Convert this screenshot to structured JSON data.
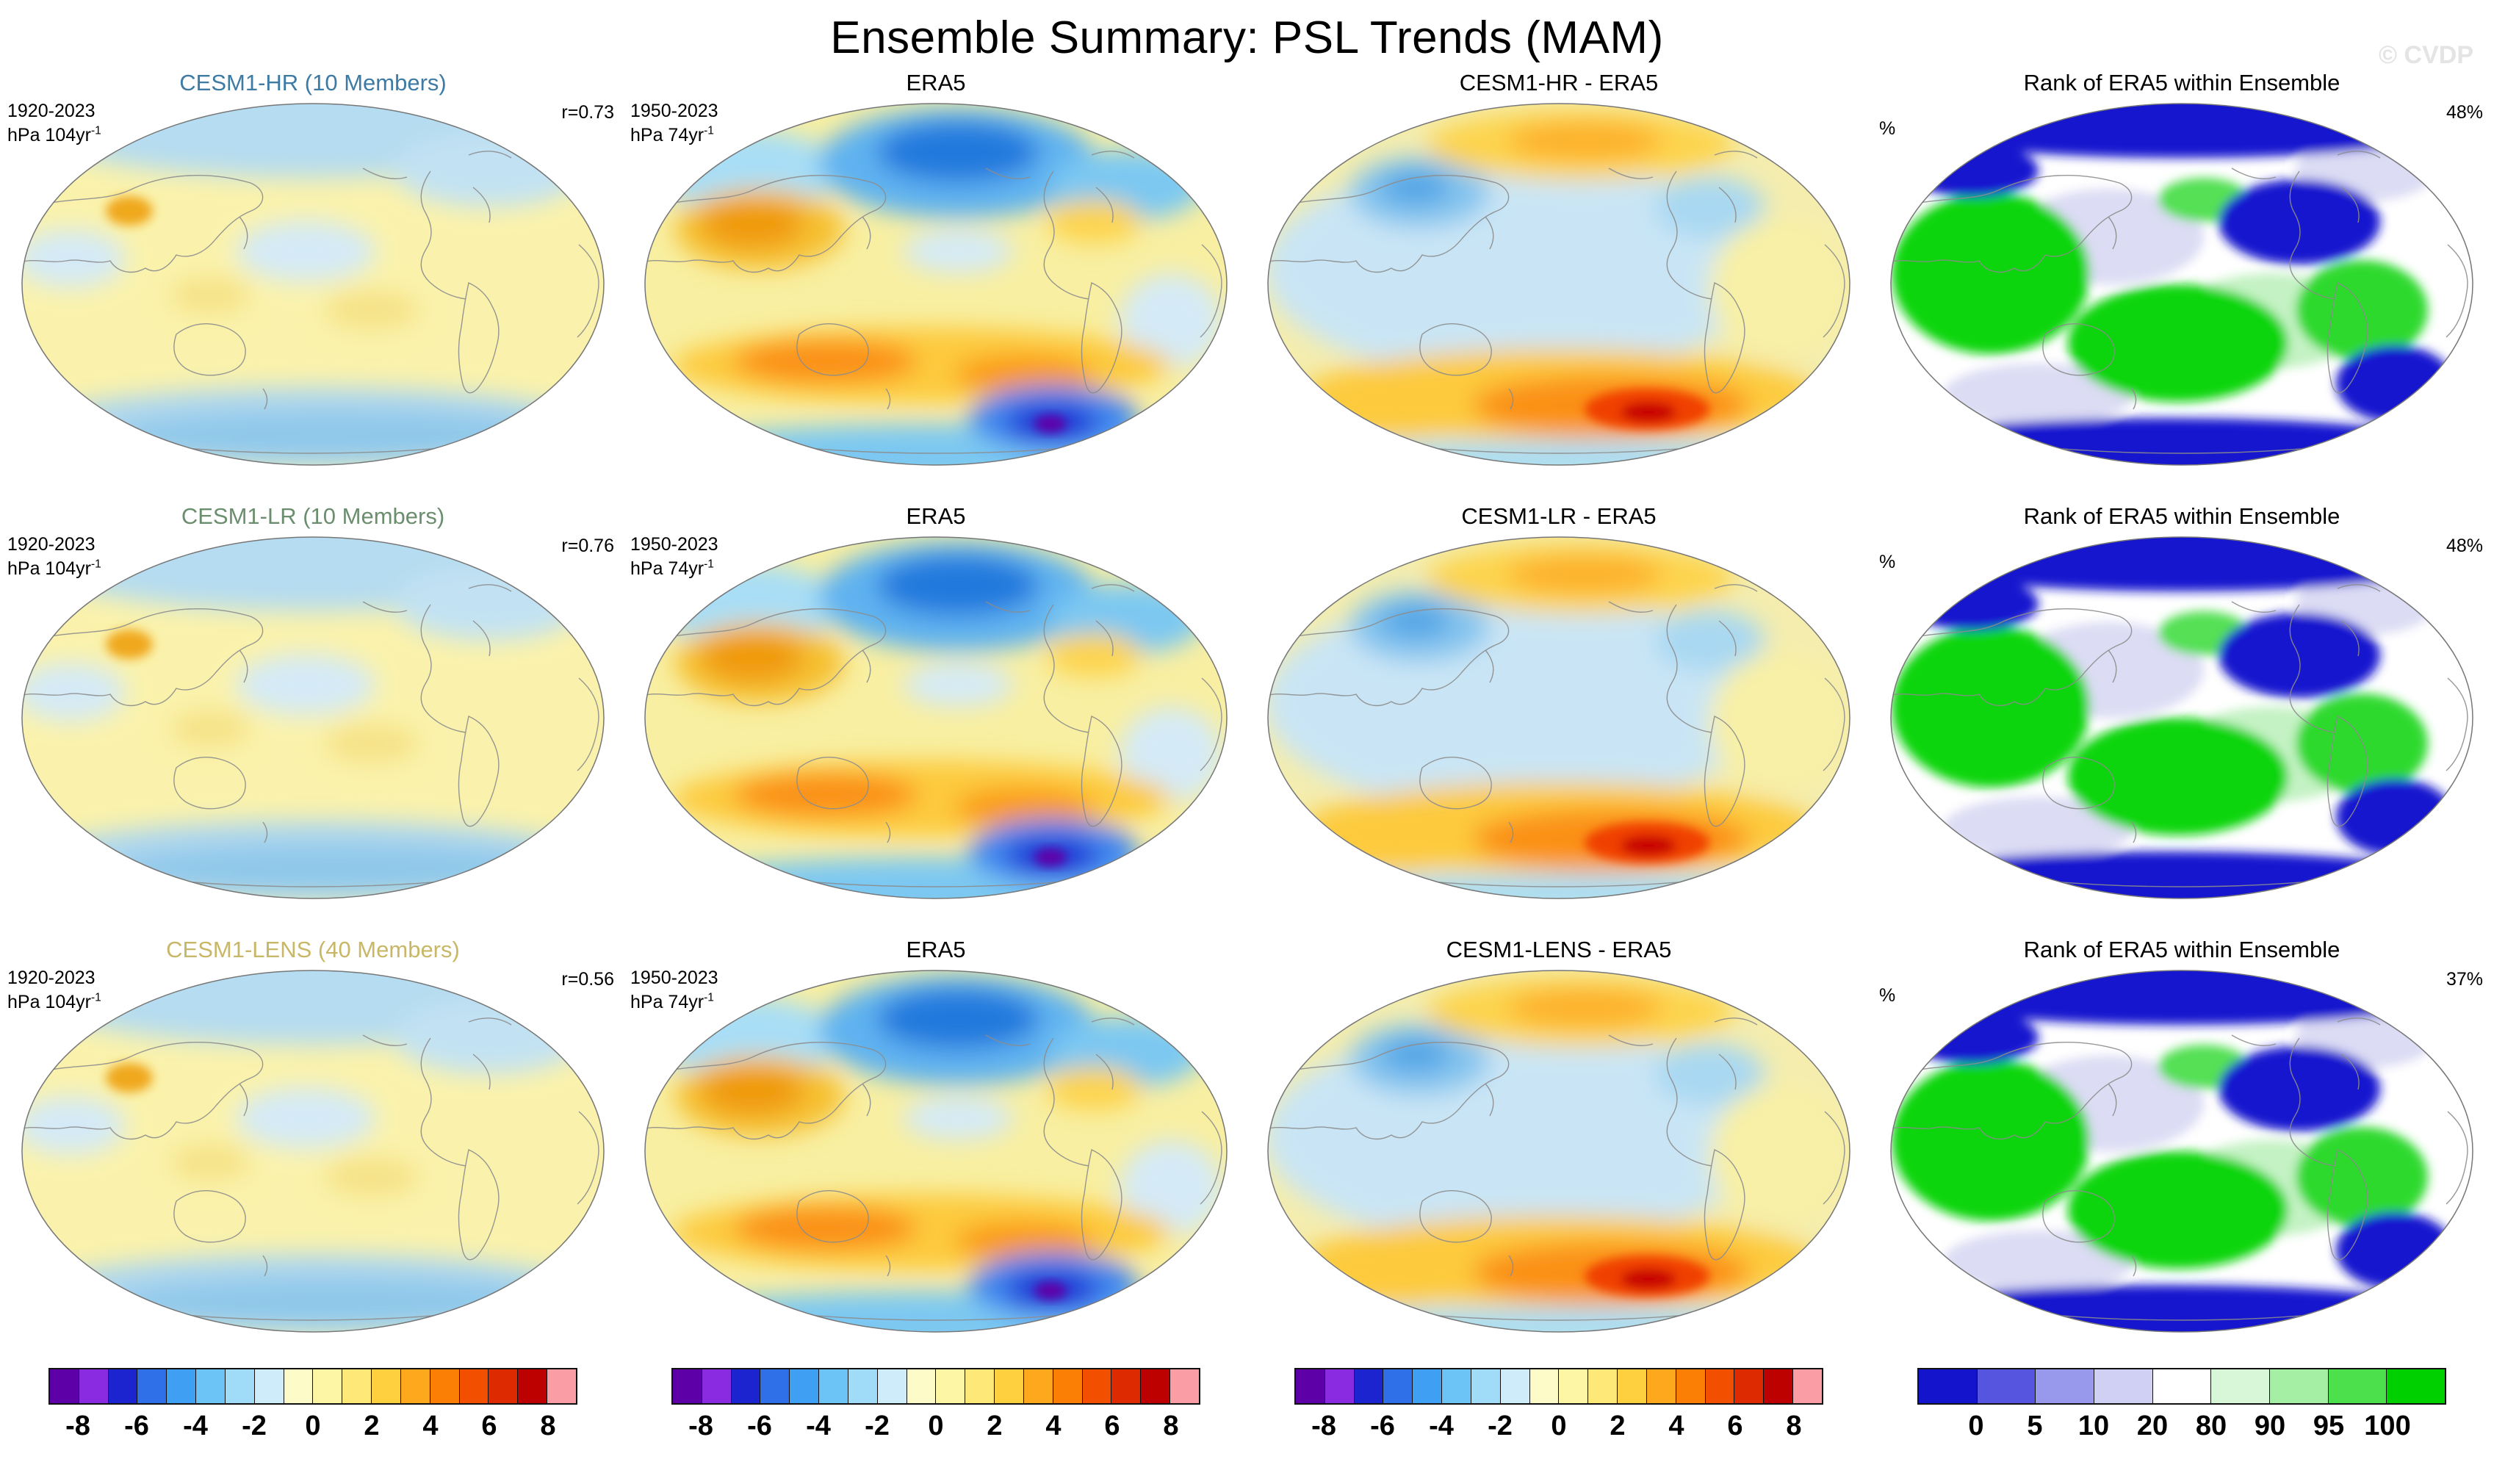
{
  "title": "Ensemble Summary: PSL Trends (MAM)",
  "watermark": "© CVDP",
  "rows": [
    {
      "panels": [
        {
          "title": "CESM1-HR (10 Members)",
          "title_color": "#3d7ba4",
          "period": "1920-2023",
          "units_base": "hPa 104yr",
          "units_exp": "-1",
          "stat": "r=0.73"
        },
        {
          "title": "ERA5",
          "period": "1950-2023",
          "units_base": "hPa 74yr",
          "units_exp": "-1"
        },
        {
          "title": "CESM1-HR - ERA5"
        },
        {
          "title": "Rank of ERA5 within Ensemble",
          "unit_label": "%",
          "stat": "48%"
        }
      ]
    },
    {
      "panels": [
        {
          "title": "CESM1-LR (10 Members)",
          "title_color": "#6b8f6e",
          "period": "1920-2023",
          "units_base": "hPa 104yr",
          "units_exp": "-1",
          "stat": "r=0.76"
        },
        {
          "title": "ERA5",
          "period": "1950-2023",
          "units_base": "hPa 74yr",
          "units_exp": "-1"
        },
        {
          "title": "CESM1-LR - ERA5"
        },
        {
          "title": "Rank of ERA5 within Ensemble",
          "unit_label": "%",
          "stat": "48%"
        }
      ]
    },
    {
      "panels": [
        {
          "title": "CESM1-LENS (40 Members)",
          "title_color": "#c9b768",
          "period": "1920-2023",
          "units_base": "hPa 104yr",
          "units_exp": "-1",
          "stat": "r=0.56"
        },
        {
          "title": "ERA5",
          "period": "1950-2023",
          "units_base": "hPa 74yr",
          "units_exp": "-1"
        },
        {
          "title": "CESM1-LENS - ERA5"
        },
        {
          "title": "Rank of ERA5 within Ensemble",
          "unit_label": "%",
          "stat": "37%"
        }
      ]
    }
  ],
  "colorbars": {
    "trend": {
      "colors": [
        "#5e00a8",
        "#8a2be2",
        "#1c24cf",
        "#2f6fe8",
        "#3f9ff2",
        "#6cc3f5",
        "#a0dbf8",
        "#cfecfa",
        "#fdfbc8",
        "#fdf6a4",
        "#fee878",
        "#fecf3e",
        "#fea81e",
        "#fb7f04",
        "#f25000",
        "#dd2a00",
        "#bd0000",
        "#fb9da5"
      ],
      "ticks": [
        "-8",
        "-6",
        "-4",
        "-2",
        "0",
        "2",
        "4",
        "6",
        "8"
      ],
      "tick_positions": [
        0.0556,
        0.1667,
        0.2778,
        0.3889,
        0.5,
        0.6111,
        0.7222,
        0.8333,
        0.9444
      ]
    },
    "rank": {
      "colors": [
        "#1414cd",
        "#5555e0",
        "#9898ec",
        "#d0d0f4",
        "#ffffff",
        "#d8f7d8",
        "#a4efa4",
        "#4ce04c",
        "#00d000"
      ],
      "ticks": [
        "0",
        "5",
        "10",
        "20",
        "80",
        "90",
        "95",
        "100"
      ],
      "tick_positions": [
        0.1111,
        0.2222,
        0.3333,
        0.4444,
        0.5556,
        0.6667,
        0.7778,
        0.8889
      ]
    }
  },
  "chart_data": {
    "type": "heatmap",
    "title": "Ensemble Summary: PSL Trends (MAM)",
    "variable": "PSL (sea level pressure) linear trends, global maps",
    "season": "MAM",
    "grid": {
      "rows": 3,
      "cols": 4,
      "column_kinds": [
        "ensemble mean trend",
        "observed trend (ERA5)",
        "ensemble minus ERA5 difference",
        "rank of ERA5 within ensemble"
      ]
    },
    "rows": [
      {
        "ensemble": "CESM1-HR",
        "members": 10,
        "ensemble_period": "1920-2023",
        "ensemble_trend_units": "hPa 104yr⁻¹",
        "obs": "ERA5",
        "obs_period": "1950-2023",
        "obs_trend_units": "hPa 74yr⁻¹",
        "pattern_correlation": 0.73,
        "rank_percent": 48
      },
      {
        "ensemble": "CESM1-LR",
        "members": 10,
        "ensemble_period": "1920-2023",
        "ensemble_trend_units": "hPa 104yr⁻¹",
        "obs": "ERA5",
        "obs_period": "1950-2023",
        "obs_trend_units": "hPa 74yr⁻¹",
        "pattern_correlation": 0.76,
        "rank_percent": 48
      },
      {
        "ensemble": "CESM1-LENS",
        "members": 40,
        "ensemble_period": "1920-2023",
        "ensemble_trend_units": "hPa 104yr⁻¹",
        "obs": "ERA5",
        "obs_period": "1950-2023",
        "obs_trend_units": "hPa 74yr⁻¹",
        "pattern_correlation": 0.56,
        "rank_percent": 37
      }
    ],
    "colorbar_trend": {
      "ticks": [
        -8,
        -6,
        -4,
        -2,
        0,
        2,
        4,
        6,
        8
      ],
      "units": "hPa per period",
      "applies_to_columns": [
        1,
        2,
        3
      ]
    },
    "colorbar_rank": {
      "ticks": [
        0,
        5,
        10,
        20,
        80,
        90,
        95,
        100
      ],
      "units": "%",
      "applies_to_columns": [
        4
      ]
    },
    "legend_position": "bottom",
    "grid_lines": false
  }
}
